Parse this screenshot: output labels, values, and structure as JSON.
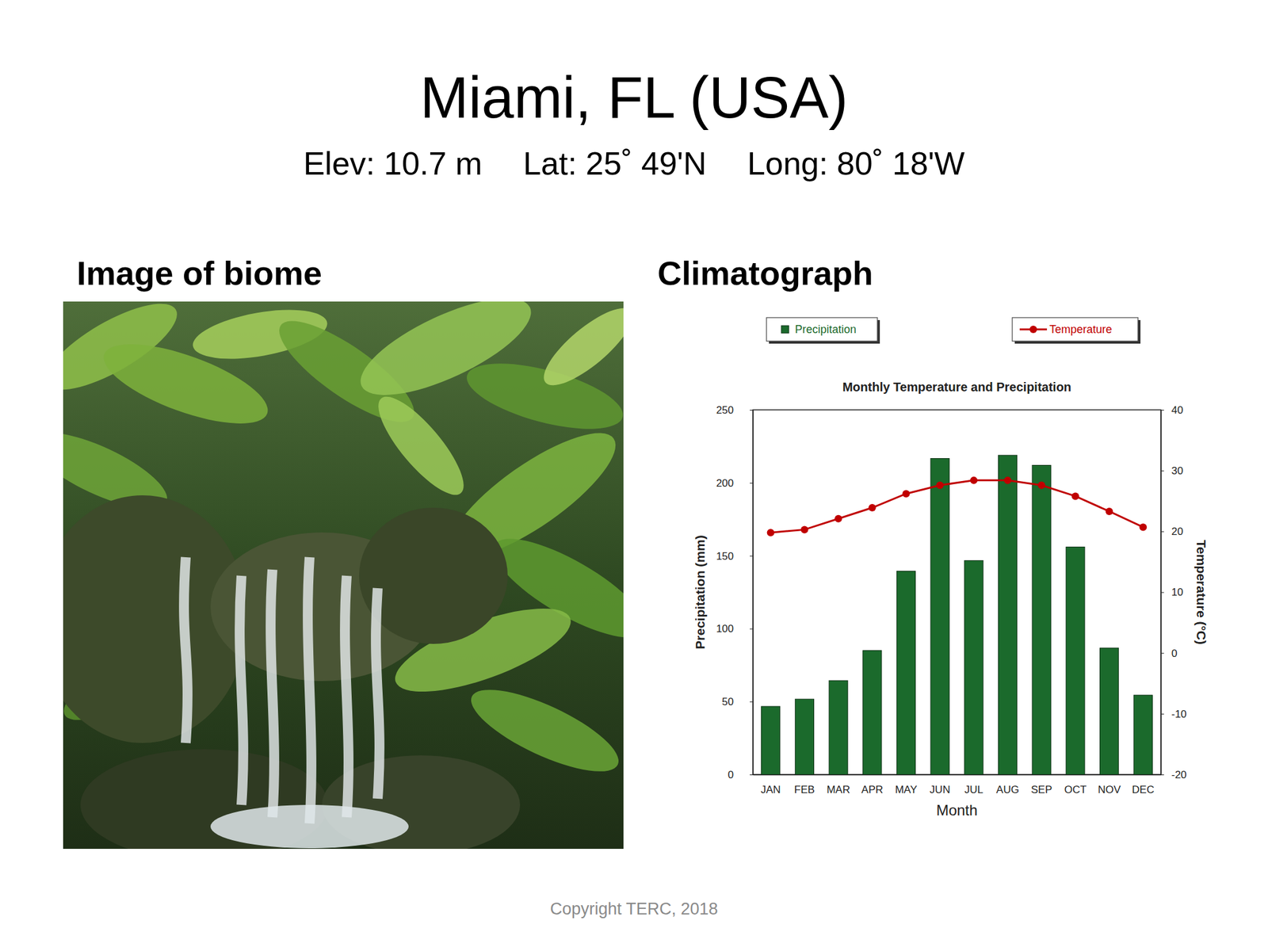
{
  "slide": {
    "title": "Miami, FL (USA)",
    "subtitle": [
      "Elev: 10.7 m",
      "Lat: 25˚ 49'N",
      "Long: 80˚ 18'W"
    ],
    "image_heading": "Image of biome",
    "chart_heading": "Climatograph",
    "footer": "Copyright TERC, 2018"
  },
  "chart_data": {
    "type": "bar",
    "title": "Monthly Temperature and Precipitation",
    "categories": [
      "JAN",
      "FEB",
      "MAR",
      "APR",
      "MAY",
      "JUN",
      "JUL",
      "AUG",
      "SEP",
      "OCT",
      "NOV",
      "DEC"
    ],
    "x_label": "Month",
    "y_label": "Precipitation (mm)",
    "y2_label": "Temperature (°C)",
    "series": [
      {
        "name": "Precipitation",
        "type": "bar",
        "color": "#1b6a2c",
        "values": [
          46.7,
          51.7,
          64.4,
          85,
          139.4,
          216.7,
          146.7,
          218.9,
          212,
          156,
          86.7,
          54.4
        ]
      },
      {
        "name": "Temperature",
        "type": "line",
        "axis": "y2",
        "color": "#c00000",
        "marker": "circle",
        "values": [
          19.8,
          20.3,
          22.1,
          23.9,
          26.2,
          27.6,
          28.4,
          28.4,
          27.6,
          25.8,
          23.3,
          20.7
        ]
      }
    ],
    "ylim": [
      0,
      250
    ],
    "yticks": [
      0,
      50,
      100,
      150,
      200,
      250
    ],
    "y2lim": [
      -20,
      40
    ],
    "y2ticks": [
      -20,
      -10,
      0,
      10,
      20,
      30,
      40
    ],
    "legend": "top",
    "grid": false
  }
}
